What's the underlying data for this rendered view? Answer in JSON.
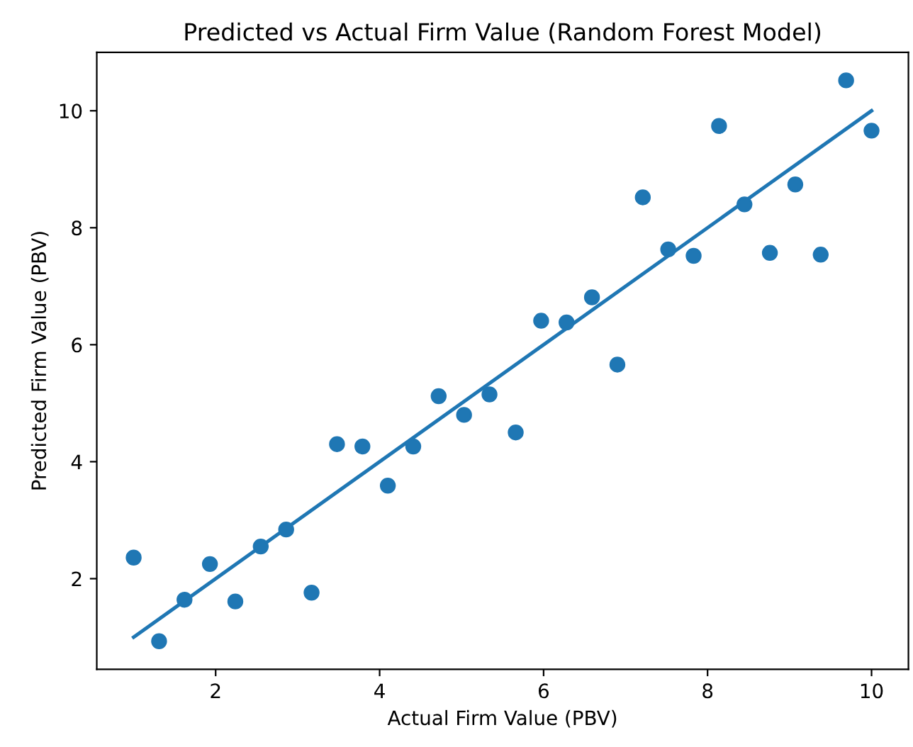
{
  "chart_data": {
    "type": "scatter",
    "title": "Predicted vs Actual Firm Value (Random Forest Model)",
    "xlabel": "Actual Firm Value (PBV)",
    "ylabel": "Predicted Firm Value (PBV)",
    "xlim": [
      0.55,
      10.45
    ],
    "xticks": [
      2,
      4,
      6,
      8,
      10
    ],
    "ylim": [
      0.45,
      11.0
    ],
    "yticks": [
      2,
      4,
      6,
      8,
      10
    ],
    "grid": false,
    "legend": false,
    "marker": "circle",
    "series": [
      {
        "color": "#1f77b4",
        "x": [
          1.0,
          1.31,
          1.62,
          1.93,
          2.24,
          2.55,
          2.86,
          3.17,
          3.48,
          3.79,
          4.1,
          4.41,
          4.72,
          5.03,
          5.34,
          5.66,
          5.97,
          6.28,
          6.59,
          6.9,
          7.21,
          7.52,
          7.83,
          8.14,
          8.45,
          8.76,
          9.07,
          9.38,
          9.69,
          10.0
        ],
        "values": [
          2.36,
          0.93,
          1.64,
          2.25,
          1.61,
          2.55,
          2.84,
          1.76,
          4.3,
          4.26,
          3.59,
          4.26,
          5.12,
          4.8,
          5.15,
          4.5,
          6.41,
          6.38,
          6.81,
          5.66,
          8.52,
          7.63,
          7.52,
          9.74,
          8.4,
          7.57,
          8.74,
          7.54,
          10.52,
          9.66
        ]
      },
      {
        "type": "line",
        "color": "#1f77b4",
        "marker": "none",
        "x": [
          1.0,
          10.0
        ],
        "values": [
          1.0,
          10.0
        ]
      }
    ]
  }
}
